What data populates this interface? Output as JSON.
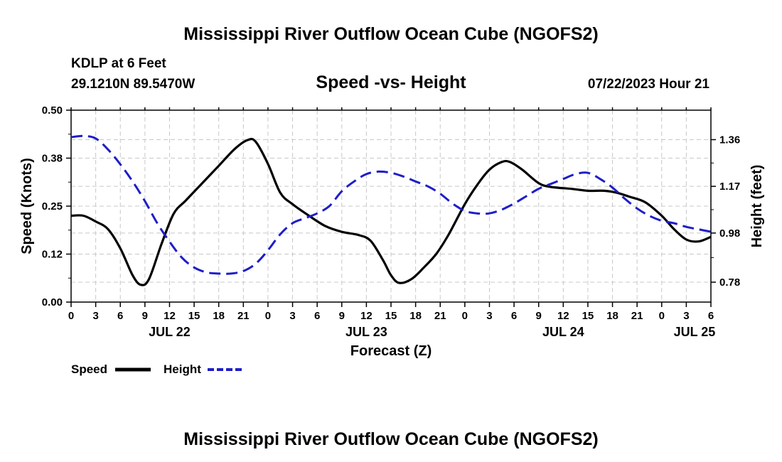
{
  "chart_data": {
    "type": "line",
    "title": "Mississippi River Outflow Ocean Cube (NGOFS2)",
    "station": "KDLP at 6 Feet",
    "location": "29.1210N  89.5470W",
    "subtitle": "Speed -vs- Height",
    "timestamp": "07/22/2023 Hour 21",
    "xlabel": "Forecast (Z)",
    "ylabel_left": "Speed (Knots)",
    "ylabel_right": "Height (feet)",
    "x_range": [
      0,
      78
    ],
    "ylim_left": [
      0,
      0.5
    ],
    "ylim_right": [
      0.699,
      1.48
    ],
    "grid": true,
    "left_ticks": [
      {
        "v": 0.0,
        "label": "0.00"
      },
      {
        "v": 0.125,
        "label": "0.12"
      },
      {
        "v": 0.25,
        "label": "0.25"
      },
      {
        "v": 0.375,
        "label": "0.38"
      },
      {
        "v": 0.5,
        "label": "0.50"
      }
    ],
    "right_ticks": [
      {
        "v": 0.78,
        "label": "0.78"
      },
      {
        "v": 0.98,
        "label": "0.98"
      },
      {
        "v": 1.17,
        "label": "1.17"
      },
      {
        "v": 1.36,
        "label": "1.36"
      }
    ],
    "x_ticks": [
      {
        "h": 0,
        "label": "0"
      },
      {
        "h": 3,
        "label": "3"
      },
      {
        "h": 6,
        "label": "6"
      },
      {
        "h": 9,
        "label": "9"
      },
      {
        "h": 12,
        "label": "12"
      },
      {
        "h": 15,
        "label": "15"
      },
      {
        "h": 18,
        "label": "18"
      },
      {
        "h": 21,
        "label": "21"
      },
      {
        "h": 24,
        "label": "0"
      },
      {
        "h": 27,
        "label": "3"
      },
      {
        "h": 30,
        "label": "6"
      },
      {
        "h": 33,
        "label": "9"
      },
      {
        "h": 36,
        "label": "12"
      },
      {
        "h": 39,
        "label": "15"
      },
      {
        "h": 42,
        "label": "18"
      },
      {
        "h": 45,
        "label": "21"
      },
      {
        "h": 48,
        "label": "0"
      },
      {
        "h": 51,
        "label": "3"
      },
      {
        "h": 54,
        "label": "6"
      },
      {
        "h": 57,
        "label": "9"
      },
      {
        "h": 60,
        "label": "12"
      },
      {
        "h": 63,
        "label": "15"
      },
      {
        "h": 66,
        "label": "18"
      },
      {
        "h": 69,
        "label": "21"
      },
      {
        "h": 72,
        "label": "0"
      },
      {
        "h": 75,
        "label": "3"
      },
      {
        "h": 78,
        "label": "6"
      }
    ],
    "date_labels": [
      {
        "h": 12,
        "label": "JUL 22"
      },
      {
        "h": 36,
        "label": "JUL 23"
      },
      {
        "h": 60,
        "label": "JUL 24"
      },
      {
        "h": 76,
        "label": "JUL 25"
      }
    ],
    "series": [
      {
        "name": "Speed",
        "axis": "left",
        "color": "#000000",
        "dashed": false,
        "x": [
          0,
          1.5,
          3,
          4.5,
          6,
          7.5,
          8.5,
          9.5,
          11,
          12.5,
          14,
          16,
          18,
          20,
          21.5,
          22.5,
          24,
          25.5,
          27,
          29,
          31,
          33,
          35,
          36.5,
          38,
          39,
          40,
          41.5,
          43,
          44.5,
          46,
          48,
          49.5,
          51,
          52.5,
          53.5,
          55,
          57,
          58.5,
          61,
          63,
          65,
          66.5,
          68,
          70,
          72,
          73.5,
          75,
          76.5,
          78
        ],
        "values": [
          0.225,
          0.225,
          0.21,
          0.19,
          0.14,
          0.07,
          0.045,
          0.06,
          0.15,
          0.23,
          0.265,
          0.31,
          0.355,
          0.4,
          0.422,
          0.418,
          0.36,
          0.285,
          0.255,
          0.225,
          0.198,
          0.183,
          0.175,
          0.16,
          0.11,
          0.07,
          0.05,
          0.06,
          0.09,
          0.125,
          0.175,
          0.255,
          0.305,
          0.345,
          0.365,
          0.365,
          0.345,
          0.31,
          0.3,
          0.295,
          0.29,
          0.29,
          0.285,
          0.275,
          0.26,
          0.225,
          0.19,
          0.163,
          0.158,
          0.17
        ]
      },
      {
        "name": "Height",
        "axis": "right",
        "color": "#1e1ec8",
        "dashed": true,
        "x": [
          0,
          1.5,
          3,
          4.5,
          6,
          7.5,
          9,
          10.5,
          12,
          13.5,
          15,
          16.5,
          18,
          19.5,
          21,
          22.5,
          24,
          25.5,
          27,
          28.5,
          30,
          31.5,
          33,
          34.5,
          36,
          37.5,
          39,
          40.5,
          42,
          43.5,
          45,
          46.5,
          48,
          49.5,
          51,
          52.5,
          54,
          55.5,
          57,
          58.5,
          60,
          61.5,
          63,
          64.5,
          66,
          67.5,
          69,
          70.5,
          72,
          73.5,
          75,
          76.5,
          78
        ],
        "values": [
          1.37,
          1.375,
          1.365,
          1.32,
          1.26,
          1.19,
          1.11,
          1.02,
          0.945,
          0.88,
          0.84,
          0.82,
          0.815,
          0.815,
          0.825,
          0.855,
          0.91,
          0.975,
          1.02,
          1.04,
          1.06,
          1.09,
          1.15,
          1.19,
          1.22,
          1.23,
          1.225,
          1.21,
          1.19,
          1.17,
          1.14,
          1.1,
          1.07,
          1.06,
          1.06,
          1.075,
          1.1,
          1.13,
          1.16,
          1.18,
          1.2,
          1.22,
          1.225,
          1.2,
          1.165,
          1.12,
          1.08,
          1.05,
          1.03,
          1.02,
          1.005,
          0.995,
          0.985
        ]
      }
    ]
  },
  "legend": {
    "speed_label": "Speed",
    "height_label": "Height"
  },
  "footer_title": "Mississippi River Outflow Ocean Cube (NGOFS2)"
}
